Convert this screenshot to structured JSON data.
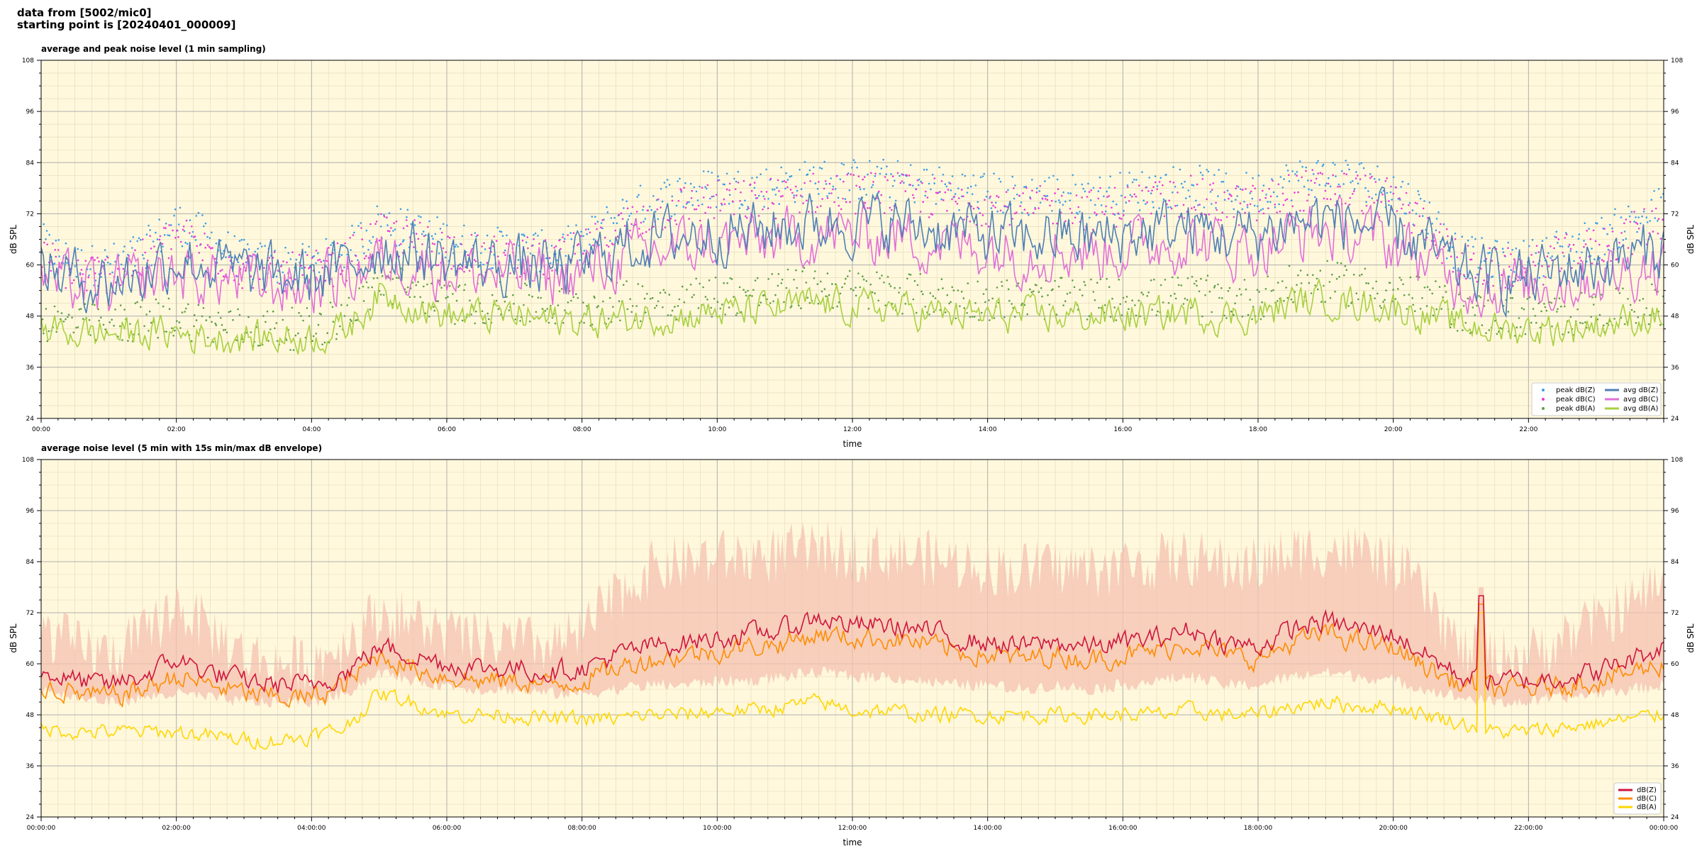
{
  "header": {
    "line1": "data from [5002/mic0]",
    "line2": "starting point is [20240401_000009]"
  },
  "chart_data": [
    {
      "type": "line",
      "title": "average and peak noise level (1 min sampling)",
      "xlabel": "time",
      "ylabel": "dB SPL",
      "ylabel_right": "dB SPL",
      "xlim_hours": [
        0,
        24
      ],
      "ylim": [
        24,
        108
      ],
      "yticks": [
        24,
        36,
        48,
        60,
        72,
        84,
        96,
        108
      ],
      "xtick_labels": [
        "00:00",
        "02:00",
        "04:00",
        "06:00",
        "08:00",
        "10:00",
        "12:00",
        "14:00",
        "16:00",
        "18:00",
        "20:00",
        "22:00"
      ],
      "grid": true,
      "background": "#fff8dc",
      "legend_position": "lower-right",
      "legend": [
        {
          "label": "peak dB(Z)",
          "kind": "dot",
          "color": "#3d9ee8"
        },
        {
          "label": "peak dB(C)",
          "kind": "dot",
          "color": "#e83ad8"
        },
        {
          "label": "peak dB(A)",
          "kind": "dot",
          "color": "#5e9e47"
        },
        {
          "label": "avg dB(Z)",
          "kind": "line",
          "color": "#4f7fb5"
        },
        {
          "label": "avg dB(C)",
          "kind": "line",
          "color": "#e070d8"
        },
        {
          "label": "avg dB(A)",
          "kind": "line",
          "color": "#a8d040"
        }
      ],
      "hours": [
        0,
        0.5,
        1,
        1.5,
        2,
        2.5,
        3,
        3.5,
        4,
        4.5,
        5,
        5.5,
        6,
        6.5,
        7,
        7.5,
        8,
        8.5,
        9,
        9.5,
        10,
        10.5,
        11,
        11.5,
        12,
        12.5,
        13,
        13.5,
        14,
        14.5,
        15,
        15.5,
        16,
        16.5,
        17,
        17.5,
        18,
        18.5,
        19,
        19.5,
        20,
        20.5,
        21,
        21.5,
        22,
        22.5,
        23,
        23.5,
        24
      ],
      "series": [
        {
          "name": "avg dB(Z)",
          "color": "#4f7fb5",
          "values": [
            60,
            57,
            56,
            58,
            62,
            60,
            58,
            57,
            57,
            59,
            64,
            63,
            61,
            60,
            60,
            59,
            60,
            64,
            66,
            67,
            68,
            68,
            69,
            70,
            70,
            70,
            69,
            68,
            67,
            66,
            67,
            66,
            67,
            68,
            69,
            67,
            67,
            70,
            71,
            70,
            68,
            64,
            58,
            57,
            57,
            59,
            60,
            62,
            64
          ]
        },
        {
          "name": "avg dB(C)",
          "color": "#e070d8",
          "values": [
            57,
            55,
            54,
            56,
            58,
            57,
            56,
            55,
            55,
            57,
            61,
            61,
            59,
            58,
            58,
            57,
            58,
            61,
            63,
            64,
            65,
            65,
            66,
            67,
            67,
            67,
            66,
            65,
            64,
            63,
            64,
            63,
            64,
            65,
            66,
            64,
            64,
            67,
            68,
            67,
            65,
            61,
            56,
            55,
            55,
            56,
            57,
            59,
            61
          ]
        },
        {
          "name": "avg dB(A)",
          "color": "#a8d040",
          "values": [
            45,
            44,
            44,
            44,
            44,
            43,
            43,
            43,
            43,
            45,
            53,
            51,
            48,
            48,
            48,
            47,
            47,
            47,
            48,
            48,
            49,
            49,
            50,
            51,
            50,
            50,
            49,
            48,
            48,
            48,
            48,
            48,
            48,
            48,
            49,
            48,
            48,
            51,
            52,
            51,
            50,
            48,
            46,
            45,
            45,
            45,
            46,
            47,
            48
          ]
        }
      ],
      "peaks": [
        {
          "name": "peak dB(Z)",
          "color": "#3d9ee8",
          "values": [
            65,
            60,
            60,
            63,
            70,
            66,
            61,
            60,
            60,
            63,
            70,
            68,
            66,
            64,
            64,
            63,
            65,
            71,
            75,
            77,
            78,
            78,
            79,
            80,
            80,
            80,
            79,
            78,
            77,
            76,
            77,
            76,
            77,
            78,
            79,
            77,
            77,
            80,
            81,
            80,
            78,
            72,
            62,
            61,
            61,
            64,
            66,
            70,
            74
          ]
        },
        {
          "name": "peak dB(C)",
          "color": "#e83ad8",
          "values": [
            62,
            58,
            58,
            61,
            67,
            63,
            59,
            58,
            58,
            61,
            67,
            66,
            64,
            62,
            62,
            61,
            63,
            68,
            72,
            74,
            75,
            75,
            76,
            77,
            77,
            77,
            76,
            75,
            74,
            73,
            74,
            73,
            74,
            75,
            76,
            74,
            74,
            77,
            78,
            77,
            75,
            69,
            60,
            59,
            59,
            62,
            64,
            67,
            71
          ]
        },
        {
          "name": "peak dB(A)",
          "color": "#5e9e47",
          "values": [
            47,
            46,
            46,
            47,
            48,
            46,
            45,
            45,
            45,
            48,
            56,
            54,
            51,
            51,
            51,
            50,
            50,
            51,
            52,
            52,
            53,
            53,
            54,
            55,
            54,
            54,
            53,
            52,
            52,
            52,
            52,
            52,
            52,
            52,
            53,
            52,
            52,
            55,
            56,
            55,
            54,
            52,
            49,
            48,
            48,
            48,
            49,
            50,
            51
          ]
        }
      ]
    },
    {
      "type": "line",
      "title": "average noise level (5 min with 15s min/max dB envelope)",
      "xlabel": "time",
      "ylabel": "dB SPL",
      "ylabel_right": "dB SPL",
      "xlim_hours": [
        0,
        24
      ],
      "ylim": [
        24,
        108
      ],
      "yticks": [
        24,
        36,
        48,
        60,
        72,
        84,
        96,
        108
      ],
      "xtick_labels": [
        "00:00:00",
        "02:00:00",
        "04:00:00",
        "06:00:00",
        "08:00:00",
        "10:00:00",
        "12:00:00",
        "14:00:00",
        "16:00:00",
        "18:00:00",
        "20:00:00",
        "22:00:00",
        "00:00:00"
      ],
      "grid": true,
      "background": "#fff8dc",
      "legend_position": "lower-right",
      "legend": [
        {
          "label": "dB(Z)",
          "kind": "line",
          "color": "#d0143c"
        },
        {
          "label": "dB(C)",
          "kind": "line",
          "color": "#ff8c00"
        },
        {
          "label": "dB(A)",
          "kind": "line",
          "color": "#ffd700"
        }
      ],
      "hours": [
        0,
        0.5,
        1,
        1.5,
        2,
        2.5,
        3,
        3.5,
        4,
        4.5,
        5,
        5.5,
        6,
        6.5,
        7,
        7.5,
        8,
        8.5,
        9,
        9.5,
        10,
        10.5,
        11,
        11.5,
        12,
        12.5,
        13,
        13.5,
        14,
        14.5,
        15,
        15.5,
        16,
        16.5,
        17,
        17.5,
        18,
        18.5,
        19,
        19.5,
        20,
        20.5,
        21,
        21.5,
        22,
        22.5,
        23,
        23.5,
        24
      ],
      "series": [
        {
          "name": "dB(Z)",
          "color": "#d0143c",
          "values": [
            58,
            56,
            55,
            57,
            61,
            58,
            56,
            55,
            55,
            58,
            64,
            62,
            60,
            59,
            59,
            58,
            59,
            62,
            64,
            65,
            66,
            67,
            68,
            71,
            69,
            69,
            68,
            66,
            65,
            64,
            65,
            64,
            65,
            66,
            68,
            65,
            64,
            68,
            70,
            68,
            67,
            62,
            57,
            56,
            56,
            57,
            58,
            61,
            64
          ]
        },
        {
          "name": "dB(C)",
          "color": "#ff8c00",
          "values": [
            55,
            53,
            52,
            54,
            57,
            55,
            53,
            52,
            52,
            55,
            62,
            59,
            57,
            56,
            56,
            55,
            56,
            59,
            61,
            62,
            63,
            64,
            65,
            67,
            66,
            66,
            65,
            63,
            62,
            61,
            62,
            61,
            62,
            63,
            65,
            62,
            61,
            65,
            67,
            65,
            64,
            59,
            55,
            54,
            54,
            55,
            56,
            58,
            60
          ]
        },
        {
          "name": "dB(A)",
          "color": "#ffd700",
          "values": [
            45,
            44,
            44,
            44,
            44,
            43,
            42,
            42,
            43,
            45,
            53,
            51,
            48,
            48,
            48,
            47,
            47,
            47,
            48,
            48,
            49,
            49,
            50,
            51,
            49,
            49,
            48,
            48,
            48,
            48,
            48,
            48,
            48,
            48,
            49,
            48,
            48,
            50,
            51,
            50,
            50,
            48,
            46,
            44,
            44,
            45,
            46,
            47,
            48
          ]
        }
      ],
      "envelope_color": "#f4c2b0",
      "envelope_min": [
        54,
        52,
        51,
        52,
        53,
        52,
        51,
        51,
        51,
        53,
        58,
        56,
        55,
        54,
        54,
        53,
        53,
        54,
        55,
        55,
        56,
        56,
        57,
        58,
        57,
        57,
        56,
        55,
        55,
        54,
        55,
        54,
        55,
        56,
        57,
        55,
        55,
        57,
        58,
        57,
        56,
        54,
        52,
        51,
        51,
        52,
        53,
        54,
        55
      ],
      "envelope_max": [
        68,
        64,
        62,
        66,
        74,
        68,
        62,
        60,
        60,
        65,
        72,
        70,
        67,
        65,
        65,
        64,
        67,
        76,
        82,
        84,
        85,
        85,
        86,
        87,
        86,
        86,
        85,
        84,
        83,
        82,
        83,
        82,
        83,
        84,
        85,
        83,
        83,
        86,
        87,
        86,
        84,
        76,
        63,
        62,
        62,
        66,
        70,
        74,
        80
      ],
      "spike": {
        "hour": 21.3,
        "value": 76
      }
    }
  ]
}
